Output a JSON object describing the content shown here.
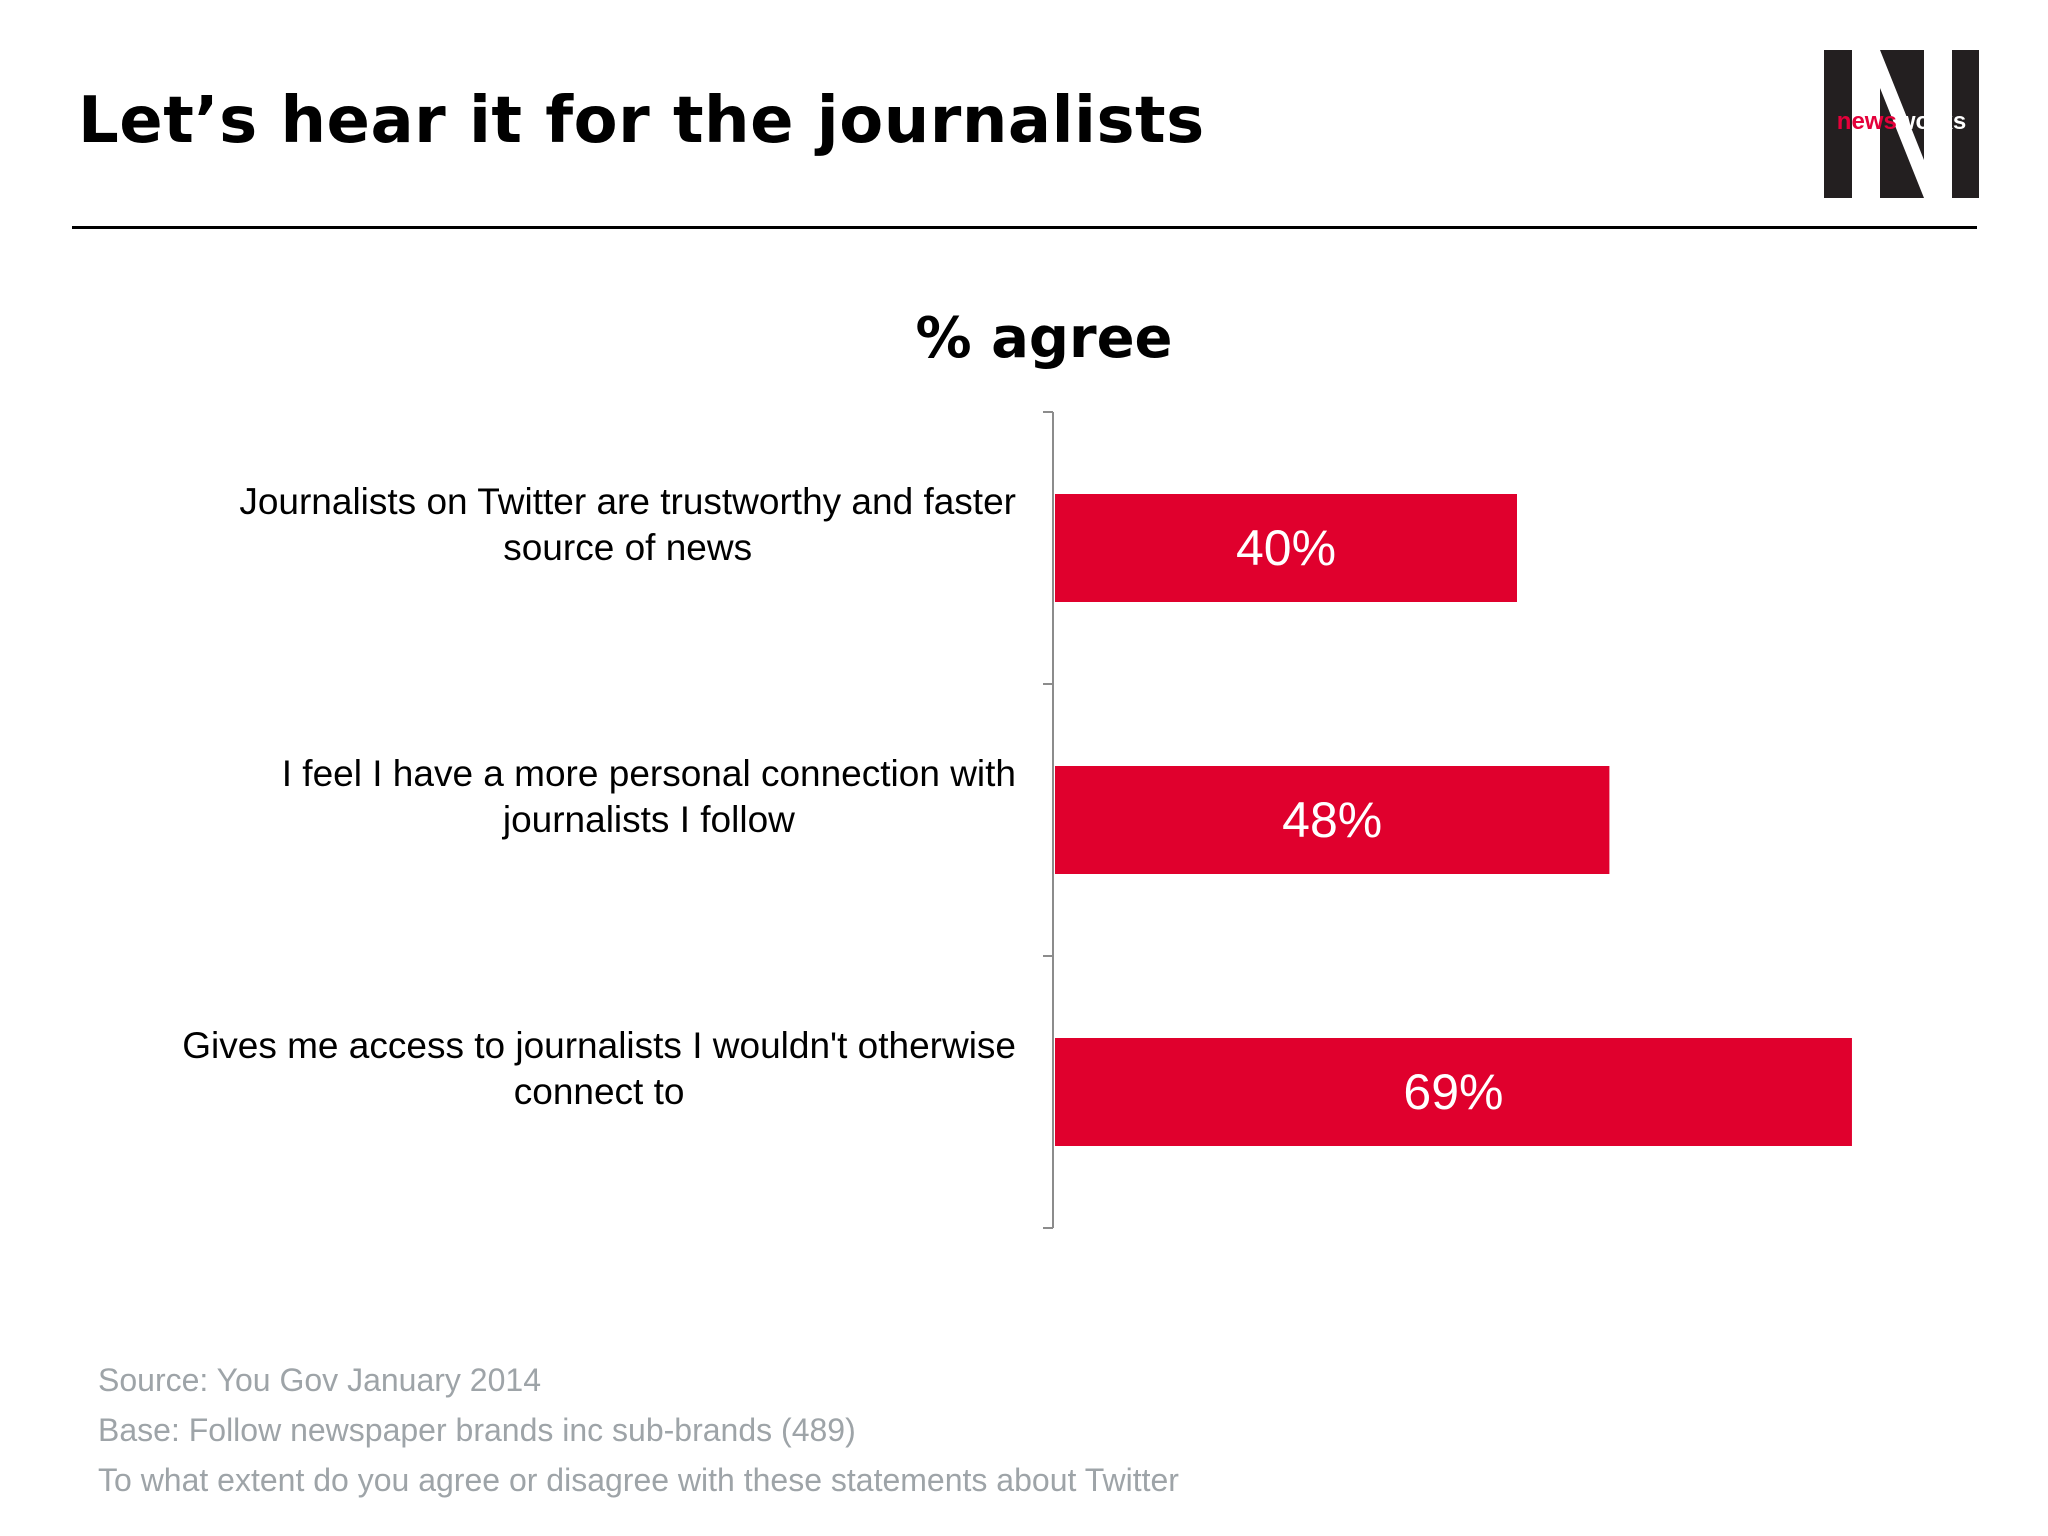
{
  "slide": {
    "title": "Let’s hear it for the journalists",
    "logo": {
      "text_news": "news",
      "text_works": "works",
      "background_color": "#231f20",
      "accent_color": "#e4003a"
    },
    "notes": [
      "Source: You Gov January 2014",
      "Base: Follow newspaper brands inc sub-brands (489)",
      "To what extent do you agree or disagree with these statements about Twitter"
    ]
  },
  "chart_data": {
    "type": "bar",
    "orientation": "horizontal",
    "title": "% agree",
    "categories": [
      [
        "Journalists on Twitter are trustworthy and faster",
        "source of news"
      ],
      [
        "I feel I have a more personal connection with",
        "journalists I follow"
      ],
      [
        "Gives me access to journalists I wouldn't otherwise",
        "connect to"
      ]
    ],
    "values": [
      40,
      48,
      69
    ],
    "data_labels": [
      "40%",
      "48%",
      "69%"
    ],
    "xlim": [
      0,
      100
    ],
    "grid": false,
    "legend": "none",
    "bar_color": "#e0002d",
    "label_color": "#ffffff"
  }
}
